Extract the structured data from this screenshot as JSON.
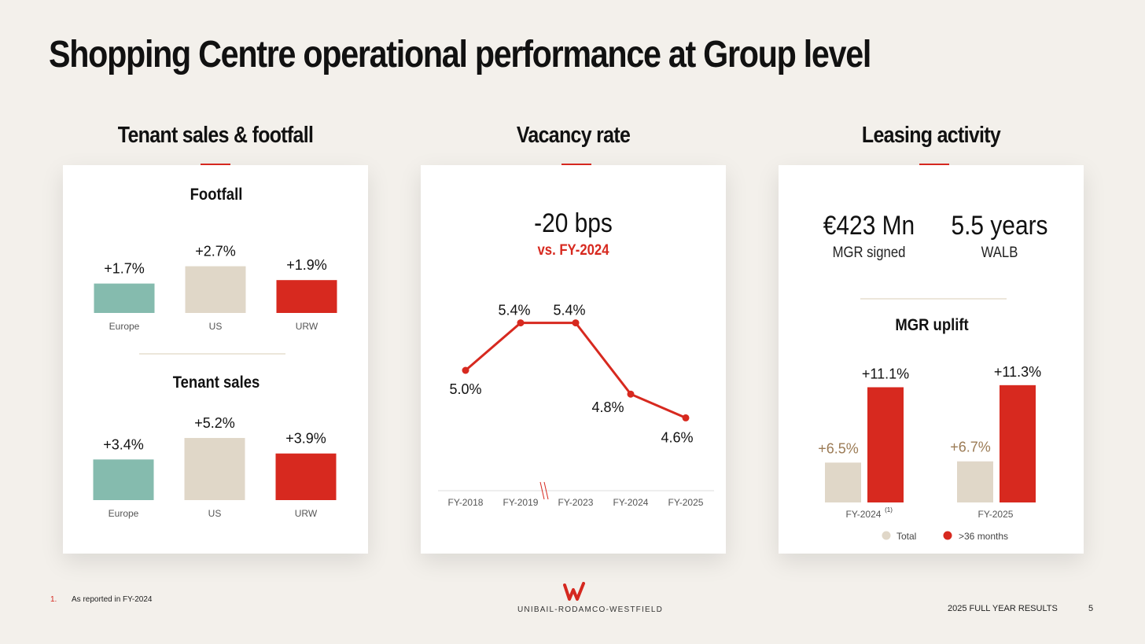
{
  "title": "Shopping Centre operational performance at Group level",
  "colors": {
    "accent": "#d5281f",
    "teal": "#85bbae",
    "beige": "#e0d7c8",
    "red": "#d7291f",
    "gold": "#9b7b55",
    "background": "#f3f0eb"
  },
  "sections": {
    "tenant": "Tenant sales & footfall",
    "vacancy": "Vacancy rate",
    "leasing": "Leasing activity"
  },
  "vacancy_headline": {
    "value": "-20 bps",
    "comparison": "vs. FY-2024"
  },
  "leasing_kpis": {
    "mgr_value": "€423 Mn",
    "mgr_label": "MGR signed",
    "walb_value": "5.5 years",
    "walb_label": "WALB"
  },
  "chart_data": [
    {
      "type": "bar",
      "title": "Footfall",
      "categories": [
        "Europe",
        "US",
        "URW"
      ],
      "values": [
        1.7,
        2.7,
        1.9
      ],
      "labels": [
        "+1.7%",
        "+2.7%",
        "+1.9%"
      ],
      "unit": "%"
    },
    {
      "type": "bar",
      "title": "Tenant sales",
      "categories": [
        "Europe",
        "US",
        "URW"
      ],
      "values": [
        3.4,
        5.2,
        3.9
      ],
      "labels": [
        "+3.4%",
        "+5.2%",
        "+3.9%"
      ],
      "unit": "%"
    },
    {
      "type": "line",
      "title": "Vacancy rate",
      "categories": [
        "FY-2018",
        "FY-2019",
        "FY-2023",
        "FY-2024",
        "FY-2025"
      ],
      "values": [
        5.0,
        5.4,
        5.4,
        4.8,
        4.6
      ],
      "labels": [
        "5.0%",
        "5.4%",
        "5.4%",
        "4.8%",
        "4.6%"
      ],
      "axis_break_after": "FY-2019",
      "unit": "%"
    },
    {
      "type": "bar",
      "title": "MGR uplift",
      "categories": [
        "FY-2024",
        "FY-2025"
      ],
      "category_notes": [
        "(1)",
        ""
      ],
      "series": [
        {
          "name": "Total",
          "values": [
            6.5,
            6.7
          ],
          "labels": [
            "+6.5%",
            "+6.7%"
          ]
        },
        {
          "name": ">36 months",
          "values": [
            11.1,
            11.3
          ],
          "labels": [
            "+11.1%",
            "+11.3%"
          ]
        }
      ],
      "unit": "%"
    }
  ],
  "footnote": {
    "number": "1.",
    "text": "As reported in FY-2024"
  },
  "logo_text": "UNIBAIL-RODAMCO-WESTFIELD",
  "footer_label": "2025 FULL YEAR RESULTS",
  "page_number": "5"
}
